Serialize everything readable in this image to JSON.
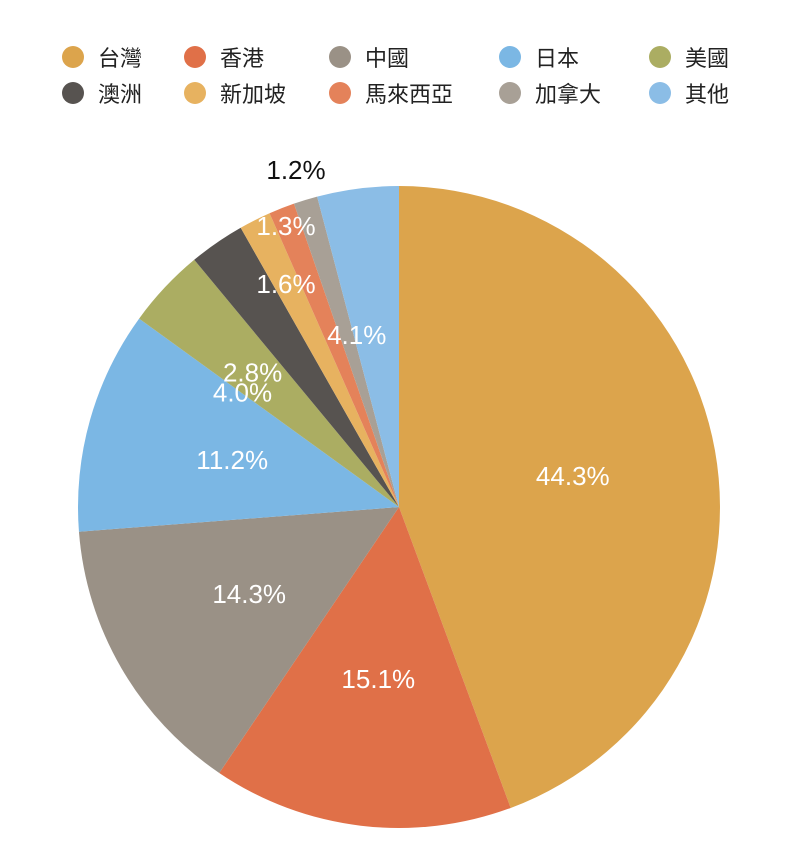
{
  "chart_data": {
    "type": "pie",
    "legend_position": "top",
    "label_format": "percent",
    "categories": [
      "台灣",
      "香港",
      "中國",
      "日本",
      "美國",
      "澳洲",
      "新加坡",
      "馬來西亞",
      "加拿大",
      "其他"
    ],
    "values": [
      44.3,
      15.1,
      14.3,
      11.2,
      4.0,
      2.8,
      1.6,
      1.3,
      1.2,
      4.1
    ],
    "labels": [
      "44.3%",
      "15.1%",
      "14.3%",
      "11.2%",
      "4.0%",
      "2.8%",
      "1.6%",
      "1.3%",
      "1.2%",
      "4.1%"
    ],
    "colors": [
      "#DCA44C",
      "#E07048",
      "#9A9186",
      "#7BB7E4",
      "#ABAD62",
      "#575350",
      "#E7B260",
      "#E4825A",
      "#A8A096",
      "#8BBDE6"
    ]
  }
}
